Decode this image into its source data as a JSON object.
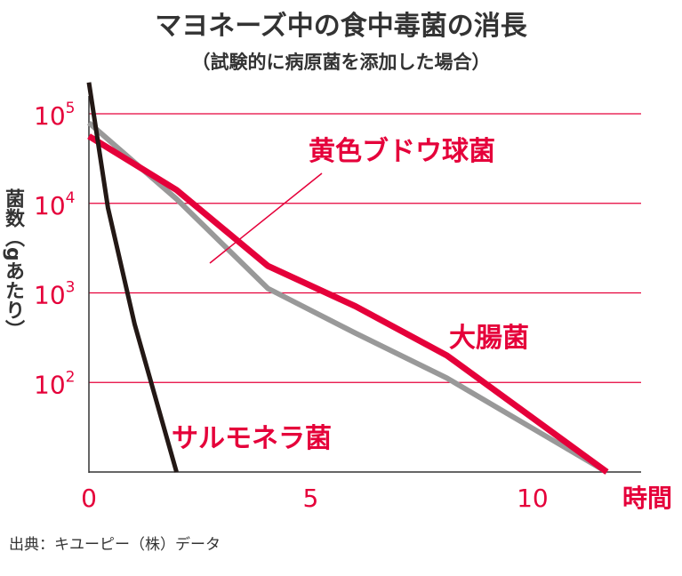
{
  "chart_data": {
    "type": "line",
    "title": "マヨネーズ中の食中毒菌の消長",
    "subtitle": "（試験的に病原菌を添加した場合）",
    "xlabel": "時間",
    "ylabel": "菌数（gあたり）",
    "x_ticks": [
      "0",
      "5",
      "10"
    ],
    "y_ticks": [
      {
        "base": "10",
        "exp": "2"
      },
      {
        "base": "10",
        "exp": "3"
      },
      {
        "base": "10",
        "exp": "4"
      },
      {
        "base": "10",
        "exp": "5"
      }
    ],
    "y_scale": "log",
    "xlim": [
      0,
      14.5
    ],
    "ylim_log10": [
      1,
      5
    ],
    "grid": "horizontal",
    "series": [
      {
        "name": "黄色ブドウ球菌",
        "color": "#999999",
        "x": [
          0,
          2.3,
          4.7,
          7.0,
          9.4,
          13.6
        ],
        "y": [
          79400,
          11200,
          1120,
          355,
          112,
          10
        ]
      },
      {
        "name": "大腸菌",
        "color": "#e5003a",
        "x": [
          0,
          2.3,
          4.7,
          7.0,
          9.4,
          13.6
        ],
        "y": [
          56200,
          14100,
          2000,
          708,
          200,
          10
        ]
      },
      {
        "name": "サルモネラ菌",
        "color": "#231815",
        "x": [
          0,
          0.5,
          1.2,
          2.3
        ],
        "y": [
          223900,
          8910,
          447,
          10
        ]
      }
    ],
    "source": "出典：キユーピー（株）データ"
  },
  "colors": {
    "accent": "#e5003a",
    "grid": "#e5003a",
    "text": "#333333"
  }
}
